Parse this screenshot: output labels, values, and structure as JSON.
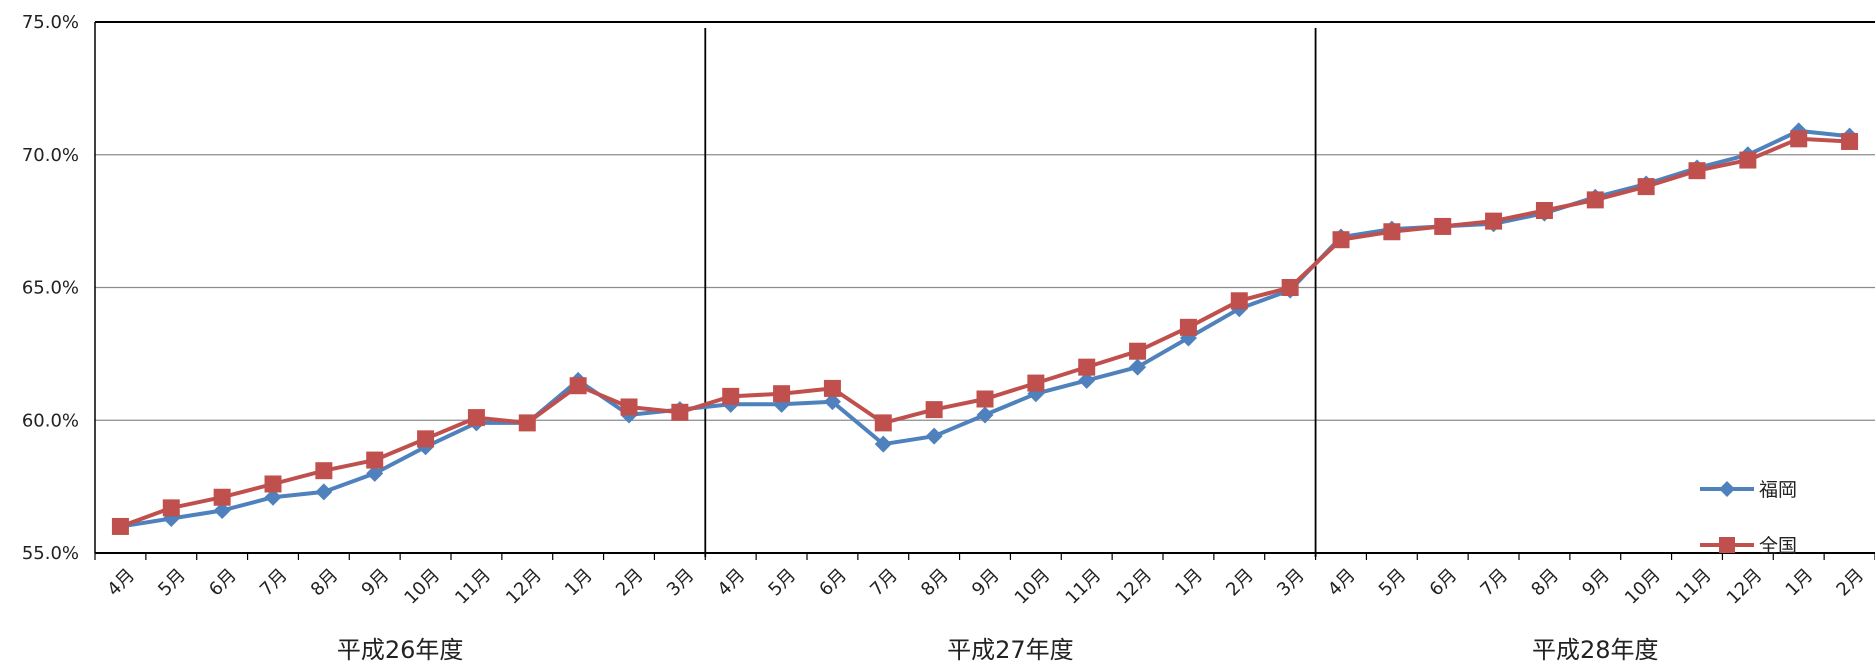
{
  "chart_data": {
    "type": "line",
    "ylim": [
      55,
      75
    ],
    "y_ticks": [
      "55.0%",
      "60.0%",
      "65.0%",
      "70.0%",
      "75.0%"
    ],
    "y_tick_values": [
      55,
      60,
      65,
      70,
      75
    ],
    "categories": [
      "4月",
      "5月",
      "6月",
      "7月",
      "8月",
      "9月",
      "10月",
      "11月",
      "12月",
      "1月",
      "2月",
      "3月",
      "4月",
      "5月",
      "6月",
      "7月",
      "8月",
      "9月",
      "10月",
      "11月",
      "12月",
      "1月",
      "2月",
      "3月",
      "4月",
      "5月",
      "6月",
      "7月",
      "8月",
      "9月",
      "10月",
      "11月",
      "12月",
      "1月",
      "2月"
    ],
    "groups": [
      {
        "label": "平成26年度",
        "count": 12
      },
      {
        "label": "平成27年度",
        "count": 12
      },
      {
        "label": "平成28年度",
        "count": 11
      }
    ],
    "grid": true,
    "legend_position": "bottom-right",
    "series": [
      {
        "name": "福岡",
        "color": "#4F81BD",
        "marker": "diamond",
        "values": [
          56.0,
          56.3,
          56.6,
          57.1,
          57.3,
          58.0,
          59.0,
          59.9,
          59.9,
          61.5,
          60.2,
          60.4,
          60.6,
          60.6,
          60.7,
          59.1,
          59.4,
          60.2,
          61.0,
          61.5,
          62.0,
          63.1,
          64.2,
          64.9,
          66.9,
          67.2,
          67.3,
          67.4,
          67.8,
          68.4,
          68.9,
          69.5,
          70.0,
          70.9,
          70.7
        ]
      },
      {
        "name": "全国",
        "color": "#C0504D",
        "marker": "square",
        "values": [
          56.0,
          56.7,
          57.1,
          57.6,
          58.1,
          58.5,
          59.3,
          60.1,
          59.9,
          61.3,
          60.5,
          60.3,
          60.9,
          61.0,
          61.2,
          59.9,
          60.4,
          60.8,
          61.4,
          62.0,
          62.6,
          63.5,
          64.5,
          65.0,
          66.8,
          67.1,
          67.3,
          67.5,
          67.9,
          68.3,
          68.8,
          69.4,
          69.8,
          70.6,
          70.5
        ]
      }
    ]
  }
}
